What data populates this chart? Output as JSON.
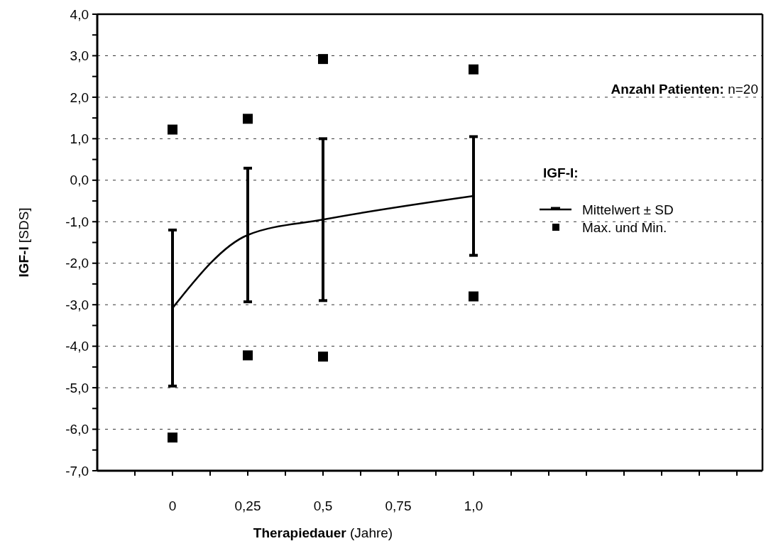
{
  "chart_data": {
    "type": "line",
    "xlabel": "Therapiedauer (Jahre)",
    "ylabel": "IGF-I [SDS]",
    "legend_title": "IGF-I:",
    "annotations": [
      "Anzahl Patienten: n=20"
    ],
    "xlim": [
      -0.25,
      1.96
    ],
    "xticks": [
      {
        "value": -0.125,
        "label": null
      },
      {
        "value": 0,
        "label": "0"
      },
      {
        "value": 0.125,
        "label": null
      },
      {
        "value": 0.25,
        "label": "0,25"
      },
      {
        "value": 0.375,
        "label": null
      },
      {
        "value": 0.5,
        "label": "0,5"
      },
      {
        "value": 0.625,
        "label": null
      },
      {
        "value": 0.75,
        "label": "0,75"
      },
      {
        "value": 0.875,
        "label": null
      },
      {
        "value": 1,
        "label": "1,0"
      },
      {
        "value": 1.125,
        "label": null
      },
      {
        "value": 1.25,
        "label": null
      },
      {
        "value": 1.375,
        "label": null
      },
      {
        "value": 1.5,
        "label": null
      },
      {
        "value": 1.625,
        "label": null
      },
      {
        "value": 1.75,
        "label": null
      },
      {
        "value": 1.875,
        "label": null
      }
    ],
    "ylim": [
      -7,
      4
    ],
    "yticks": [
      {
        "value": -7,
        "label": "-7,0"
      },
      {
        "value": -6.5,
        "label": null
      },
      {
        "value": -6,
        "label": "-6,0"
      },
      {
        "value": -5.5,
        "label": null
      },
      {
        "value": -5,
        "label": "-5,0"
      },
      {
        "value": -4.5,
        "label": null
      },
      {
        "value": -4,
        "label": "-4,0"
      },
      {
        "value": -3.5,
        "label": null
      },
      {
        "value": -3,
        "label": "-3,0"
      },
      {
        "value": -2.5,
        "label": null
      },
      {
        "value": -2,
        "label": "-2,0"
      },
      {
        "value": -1.5,
        "label": null
      },
      {
        "value": -1,
        "label": "-1,0"
      },
      {
        "value": -0.5,
        "label": null
      },
      {
        "value": 0,
        "label": "0,0"
      },
      {
        "value": 0.5,
        "label": null
      },
      {
        "value": 1,
        "label": "1,0"
      },
      {
        "value": 1.5,
        "label": null
      },
      {
        "value": 2,
        "label": "2,0"
      },
      {
        "value": 2.5,
        "label": null
      },
      {
        "value": 3,
        "label": "3,0"
      },
      {
        "value": 3.5,
        "label": null
      },
      {
        "value": 4,
        "label": "4,0"
      }
    ],
    "grid": "y",
    "legend": "top right",
    "series": [
      {
        "name": "Mittelwert ± SD",
        "color": "#000000",
        "x": [
          0,
          0.25,
          0.5,
          1
        ],
        "values": [
          -3.08,
          -1.32,
          -0.95,
          -0.38
        ],
        "errors": [
          1.88,
          1.61,
          1.95,
          1.43
        ],
        "marker": "none",
        "line_style": "solid"
      },
      {
        "name": "Max. und Min.",
        "type": "scatter",
        "color": "#000000",
        "x": [
          0,
          0,
          0.25,
          0.25,
          0.5,
          0.5,
          1,
          1
        ],
        "values": [
          1.22,
          -6.2,
          1.48,
          -4.22,
          2.92,
          -4.25,
          2.67,
          -2.8
        ],
        "marker": "square"
      }
    ]
  }
}
